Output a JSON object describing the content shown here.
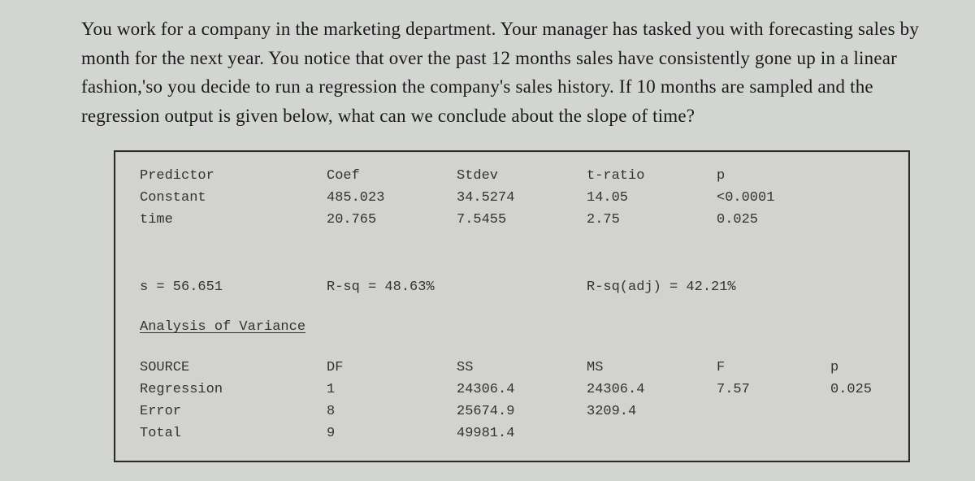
{
  "question": "You work for a company in the marketing department. Your manager has tasked you with forecasting sales by month for the next year. You notice that over the past 12 months sales have consistently gone up in a linear fashion,'so you decide to run a regression the company's sales history. If 10 months are sampled and the regression output is given below, what can we conclude about the slope of time?",
  "predictor": {
    "headers": [
      "Predictor",
      "Coef",
      "Stdev",
      "t-ratio",
      "p"
    ],
    "rows": [
      [
        "Constant",
        "485.023",
        "34.5274",
        "14.05",
        "<0.0001"
      ],
      [
        "time",
        "20.765",
        "7.5455",
        "2.75",
        "0.025"
      ]
    ]
  },
  "stats": {
    "s": "s = 56.651",
    "rsq": "R-sq = 48.63%",
    "rsq_adj": "R-sq(adj) = 42.21%"
  },
  "anova": {
    "title": "Analysis of Variance",
    "headers": [
      "SOURCE",
      "DF",
      "SS",
      "MS",
      "F",
      "p"
    ],
    "rows": [
      [
        "Regression",
        "1",
        "24306.4",
        "24306.4",
        "7.57",
        "0.025"
      ],
      [
        "Error",
        "8",
        "25674.9",
        "3209.4",
        "",
        ""
      ],
      [
        "Total",
        "9",
        "49981.4",
        "",
        "",
        ""
      ]
    ]
  }
}
